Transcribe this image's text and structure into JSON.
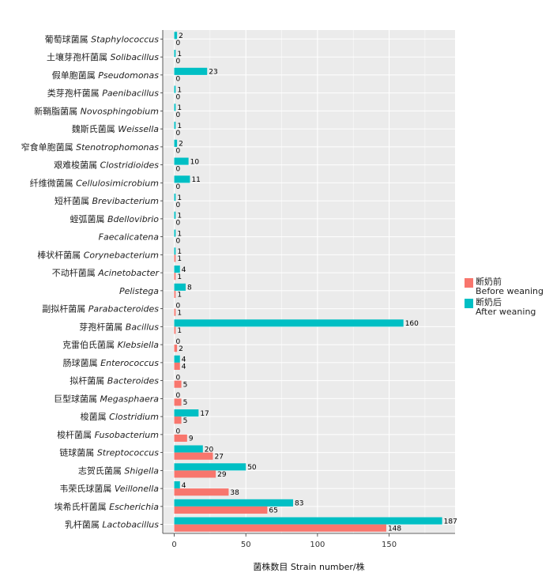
{
  "chart_data": {
    "type": "bar",
    "orientation": "horizontal",
    "xlabel": "菌株数目 Strain number/株",
    "xlim": [
      -8,
      196
    ],
    "xticks": [
      0,
      50,
      100,
      150
    ],
    "legend_position": "right",
    "grid": true,
    "categories": [
      {
        "zh": "葡萄球菌属",
        "latin": "Staphylococcus"
      },
      {
        "zh": "土壤芽孢杆菌属",
        "latin": "Solibacillus"
      },
      {
        "zh": "假单胞菌属",
        "latin": "Pseudomonas"
      },
      {
        "zh": "类芽孢杆菌属",
        "latin": "Paenibacillus"
      },
      {
        "zh": "新鞘脂菌属",
        "latin": "Novosphingobium"
      },
      {
        "zh": "魏斯氏菌属",
        "latin": "Weissella"
      },
      {
        "zh": "窄食单胞菌属",
        "latin": "Stenotrophomonas"
      },
      {
        "zh": "艰难梭菌属",
        "latin": "Clostridioides"
      },
      {
        "zh": "纤维微菌属",
        "latin": "Cellulosimicrobium"
      },
      {
        "zh": "短杆菌属",
        "latin": "Brevibacterium"
      },
      {
        "zh": "蛭弧菌属",
        "latin": "Bdellovibrio"
      },
      {
        "zh": "",
        "latin": "Faecalicatena"
      },
      {
        "zh": "棒状杆菌属",
        "latin": "Corynebacterium"
      },
      {
        "zh": "不动杆菌属",
        "latin": "Acinetobacter"
      },
      {
        "zh": "",
        "latin": "Pelistega"
      },
      {
        "zh": "副拟杆菌属",
        "latin": "Parabacteroides"
      },
      {
        "zh": "芽孢杆菌属",
        "latin": "Bacillus"
      },
      {
        "zh": "克雷伯氏菌属",
        "latin": "Klebsiella"
      },
      {
        "zh": "肠球菌属",
        "latin": "Enterococcus"
      },
      {
        "zh": "拟杆菌属",
        "latin": "Bacteroides"
      },
      {
        "zh": "巨型球菌属",
        "latin": "Megasphaera"
      },
      {
        "zh": "梭菌属",
        "latin": "Clostridium"
      },
      {
        "zh": "梭杆菌属",
        "latin": "Fusobacterium"
      },
      {
        "zh": "链球菌属",
        "latin": "Streptococcus"
      },
      {
        "zh": "志贺氏菌属",
        "latin": "Shigella"
      },
      {
        "zh": "韦荣氏球菌属",
        "latin": "Veillonella"
      },
      {
        "zh": "埃希氏杆菌属",
        "latin": "Escherichia"
      },
      {
        "zh": "乳杆菌属",
        "latin": "Lactobacillus"
      }
    ],
    "series": [
      {
        "name": "断奶后 After weaning",
        "zh": "断奶后",
        "en": "After weaning",
        "color": "#00BFC4",
        "values": [
          2,
          1,
          23,
          1,
          1,
          1,
          2,
          10,
          11,
          1,
          1,
          1,
          1,
          4,
          8,
          0,
          160,
          0,
          4,
          0,
          0,
          17,
          0,
          20,
          50,
          4,
          83,
          187
        ]
      },
      {
        "name": "断奶前 Before weaning",
        "zh": "断奶前",
        "en": "Before weaning",
        "color": "#F8766D",
        "values": [
          0,
          0,
          0,
          0,
          0,
          0,
          0,
          0,
          0,
          0,
          0,
          0,
          1,
          1,
          1,
          1,
          1,
          2,
          4,
          5,
          5,
          5,
          9,
          27,
          29,
          38,
          65,
          148
        ]
      }
    ]
  }
}
